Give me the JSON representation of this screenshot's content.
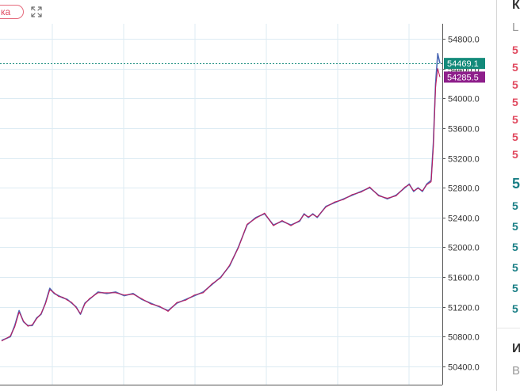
{
  "toolbar": {
    "pill_label": "ка",
    "pill_color": "#e0485e",
    "expand_icon": "expand-arrows-icon"
  },
  "side_panel": {
    "header": "К",
    "subheader": "L",
    "rows": [
      {
        "text": "5",
        "color": "#e0485e"
      },
      {
        "text": "5",
        "color": "#e0485e"
      },
      {
        "text": "5",
        "color": "#e0485e"
      },
      {
        "text": "5",
        "color": "#e0485e"
      },
      {
        "text": "5",
        "color": "#e0485e"
      },
      {
        "text": "5",
        "color": "#e0485e"
      },
      {
        "text": "5",
        "color": "#e0485e"
      },
      {
        "text": "5",
        "color": "#1a7f86"
      },
      {
        "text": "5",
        "color": "#1a7f86"
      },
      {
        "text": "5",
        "color": "#1a7f86"
      },
      {
        "text": "5",
        "color": "#1a7f86"
      },
      {
        "text": "5",
        "color": "#1a7f86"
      },
      {
        "text": "5",
        "color": "#1a7f86"
      },
      {
        "text": "5",
        "color": "#1a7f86"
      }
    ],
    "footer_title": "И",
    "footer_sub": "В"
  },
  "chart_data": {
    "type": "line",
    "title": "",
    "xlabel": "",
    "ylabel": "",
    "ylim": [
      50200,
      55000
    ],
    "y_ticks": [
      54800.0,
      54400.0,
      54000.0,
      53600.0,
      53200.0,
      52800.0,
      52400.0,
      52000.0,
      51600.0,
      51200.0,
      50800.0,
      50400.0
    ],
    "y_tick_labels": [
      "54800.0",
      "54400.0",
      "54000.0",
      "53600.0",
      "53200.0",
      "52800.0",
      "52400.0",
      "52000.0",
      "51600.0",
      "51200.0",
      "50800.0",
      "50400.0"
    ],
    "grid": true,
    "x_index_range": [
      0,
      100
    ],
    "series": [
      {
        "color": "#4f6bb6",
        "x": [
          0,
          2,
          3,
          4,
          5,
          6,
          7,
          8,
          9,
          10,
          11,
          12,
          13,
          14,
          15,
          16,
          17,
          18,
          19,
          20,
          22,
          24,
          26,
          28,
          30,
          32,
          34,
          36,
          38,
          40,
          42,
          44,
          46,
          48,
          50,
          52,
          54,
          56,
          58,
          60,
          62,
          64,
          66,
          68,
          69,
          70,
          71,
          72,
          74,
          76,
          78,
          80,
          82,
          84,
          86,
          88,
          90,
          92,
          93,
          94,
          95,
          96,
          97,
          98,
          98.5,
          99,
          99.5,
          100
        ],
        "y": [
          50750,
          50800,
          50950,
          51150,
          51000,
          50950,
          50950,
          51050,
          51100,
          51250,
          51450,
          51380,
          51350,
          51320,
          51300,
          51250,
          51200,
          51100,
          51250,
          51300,
          51400,
          51380,
          51400,
          51350,
          51380,
          51300,
          51250,
          51200,
          51150,
          51250,
          51300,
          51350,
          51400,
          51500,
          51600,
          51750,
          52000,
          52300,
          52400,
          52450,
          52300,
          52350,
          52300,
          52350,
          52450,
          52400,
          52450,
          52400,
          52550,
          52600,
          52650,
          52700,
          52750,
          52800,
          52700,
          52650,
          52700,
          52800,
          52850,
          52750,
          52800,
          52750,
          52850,
          52900,
          53400,
          54200,
          54600,
          54469.1
        ]
      },
      {
        "color": "#c2185b",
        "x": [
          0,
          2,
          3,
          4,
          5,
          6,
          7,
          8,
          9,
          10,
          11,
          12,
          13,
          14,
          15,
          16,
          17,
          18,
          19,
          20,
          22,
          24,
          26,
          28,
          30,
          32,
          34,
          36,
          38,
          40,
          42,
          44,
          46,
          48,
          50,
          52,
          54,
          56,
          58,
          60,
          62,
          64,
          66,
          68,
          69,
          70,
          71,
          72,
          74,
          76,
          78,
          80,
          82,
          84,
          86,
          88,
          90,
          92,
          93,
          94,
          95,
          96,
          97,
          98,
          98.5,
          99,
          99.5,
          100
        ],
        "y": [
          50740,
          50810,
          50930,
          51130,
          51010,
          50940,
          50960,
          51040,
          51110,
          51240,
          51430,
          51390,
          51340,
          51330,
          51290,
          51260,
          51190,
          51110,
          51240,
          51310,
          51390,
          51390,
          51390,
          51360,
          51370,
          51310,
          51240,
          51210,
          51140,
          51260,
          51290,
          51360,
          51390,
          51510,
          51590,
          51760,
          51990,
          52310,
          52390,
          52460,
          52290,
          52360,
          52290,
          52360,
          52440,
          52410,
          52440,
          52410,
          52540,
          52610,
          52640,
          52710,
          52740,
          52810,
          52690,
          52660,
          52690,
          52810,
          52840,
          52760,
          52790,
          52760,
          52840,
          52880,
          53350,
          54150,
          54400,
          54285.5
        ]
      }
    ],
    "current_price": {
      "value": 54469.1,
      "label": "54469.1",
      "color": "#138a7a"
    },
    "second_price": {
      "value": 54285.5,
      "label": "54285.5",
      "color": "#8e1f8b"
    }
  }
}
